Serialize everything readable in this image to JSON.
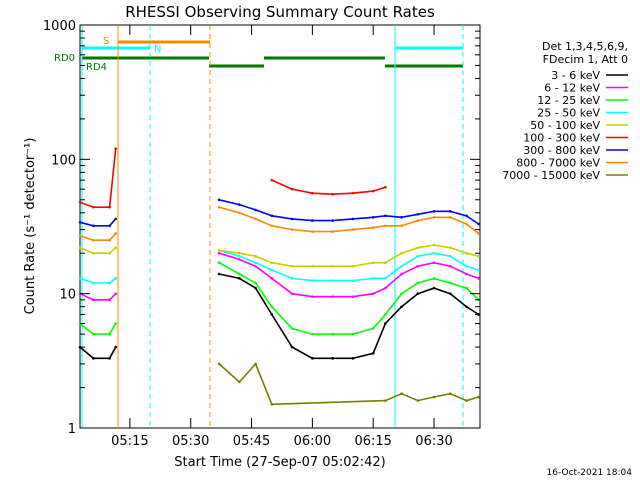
{
  "chart_data": {
    "type": "line",
    "title": "RHESSI Observing Summary Count Rates",
    "xlabel": "Start Time (27-Sep-07 05:02:42)",
    "ylabel": "Count Rate (s⁻¹ detector⁻¹)",
    "yscale": "log",
    "xlim": [
      "05:02:42",
      "06:41:20"
    ],
    "ylim": [
      1,
      1000
    ],
    "x_ticks": [
      "05:15",
      "05:30",
      "05:45",
      "06:00",
      "06:15",
      "06:30"
    ],
    "y_ticks": [
      "1",
      "10",
      "100",
      "1000"
    ],
    "legend_header": [
      "Det 1,3,4,5,6,9,",
      "FDecim 1, Att 0"
    ],
    "timestamp": "16-Oct-2021 18:04",
    "state_labels": {
      "S": "S",
      "N": "N",
      "RD0": "RD0",
      "RD4": "RD4"
    },
    "series": [
      {
        "name": "3 - 6 keV",
        "color": "#000000",
        "x": [
          "05:02:42",
          "05:06:00",
          "05:10:00",
          "05:11:30",
          "05:12:30",
          "05:37:00",
          "05:42:00",
          "05:46:00",
          "05:50:00",
          "05:55:00",
          "06:00:00",
          "06:05:00",
          "06:10:00",
          "06:15:00",
          "06:18:00",
          "06:22:00",
          "06:26:00",
          "06:30:00",
          "06:34:00",
          "06:38:00",
          "06:41:00"
        ],
        "values": [
          4.0,
          3.3,
          3.3,
          4,
          null,
          14,
          13,
          11,
          7,
          4,
          3.3,
          3.3,
          3.3,
          3.6,
          6,
          8,
          10,
          11,
          10,
          8,
          7
        ]
      },
      {
        "name": "6 - 12 keV",
        "color": "#ff00ff",
        "x": [
          "05:02:42",
          "05:06:00",
          "05:10:00",
          "05:11:30",
          "05:12:30",
          "05:37:00",
          "05:42:00",
          "05:46:00",
          "05:50:00",
          "05:55:00",
          "06:00:00",
          "06:05:00",
          "06:10:00",
          "06:15:00",
          "06:18:00",
          "06:22:00",
          "06:26:00",
          "06:30:00",
          "06:34:00",
          "06:38:00",
          "06:41:00"
        ],
        "values": [
          10,
          9,
          9,
          10,
          null,
          20,
          18,
          16,
          13,
          10,
          9.5,
          9.5,
          9.5,
          10,
          11,
          14,
          16,
          17,
          16,
          14,
          13
        ]
      },
      {
        "name": "12 - 25 keV",
        "color": "#00ff00",
        "x": [
          "05:02:42",
          "05:06:00",
          "05:10:00",
          "05:11:30",
          "05:12:30",
          "05:37:00",
          "05:42:00",
          "05:46:00",
          "05:50:00",
          "05:55:00",
          "06:00:00",
          "06:05:00",
          "06:10:00",
          "06:15:00",
          "06:18:00",
          "06:22:00",
          "06:26:00",
          "06:30:00",
          "06:34:00",
          "06:38:00",
          "06:41:00"
        ],
        "values": [
          6,
          5,
          5,
          6,
          null,
          17,
          14,
          12,
          8,
          5.5,
          5,
          5,
          5,
          5.5,
          7,
          10,
          12,
          13,
          12,
          11,
          9
        ]
      },
      {
        "name": "25 - 50 keV",
        "color": "#00ffff",
        "x": [
          "05:02:42",
          "05:06:00",
          "05:10:00",
          "05:11:30",
          "05:12:30",
          "05:37:00",
          "05:42:00",
          "05:46:00",
          "05:50:00",
          "05:55:00",
          "06:00:00",
          "06:05:00",
          "06:10:00",
          "06:15:00",
          "06:18:00",
          "06:22:00",
          "06:26:00",
          "06:30:00",
          "06:34:00",
          "06:38:00",
          "06:41:00"
        ],
        "values": [
          13,
          12,
          12,
          13,
          null,
          21,
          19,
          17,
          15,
          13,
          12.5,
          12.5,
          12.5,
          13,
          13,
          16,
          19,
          20,
          19,
          16,
          15
        ]
      },
      {
        "name": "50 - 100 keV",
        "color": "#cccc00",
        "x": [
          "05:02:42",
          "05:06:00",
          "05:10:00",
          "05:11:30",
          "05:12:30",
          "05:37:00",
          "05:42:00",
          "05:46:00",
          "05:50:00",
          "05:55:00",
          "06:00:00",
          "06:05:00",
          "06:10:00",
          "06:15:00",
          "06:18:00",
          "06:22:00",
          "06:26:00",
          "06:30:00",
          "06:34:00",
          "06:38:00",
          "06:41:00"
        ],
        "values": [
          22,
          20,
          20,
          22,
          null,
          21,
          20,
          19,
          17,
          16,
          16,
          16,
          16,
          17,
          17,
          20,
          22,
          23,
          22,
          20,
          19
        ]
      },
      {
        "name": "100 - 300 keV",
        "color": "#ff0000",
        "x": [
          "05:02:42",
          "05:06:00",
          "05:10:00",
          "05:11:30",
          "05:12:30",
          "05:37:00",
          "05:42:00",
          "05:46:00",
          "05:50:00",
          "05:55:00",
          "06:00:00",
          "06:05:00",
          "06:10:00",
          "06:15:00",
          "06:18:00",
          "06:22:00",
          "06:26:00",
          "06:30:00",
          "06:34:00",
          "06:38:00",
          "06:41:00"
        ],
        "values": [
          48,
          44,
          44,
          120,
          null,
          null,
          null,
          null,
          70,
          60,
          56,
          55,
          56,
          58,
          62,
          null,
          null,
          null,
          null,
          null,
          null
        ]
      },
      {
        "name": "300 - 800 keV",
        "color": "#0000ff",
        "x": [
          "05:02:42",
          "05:06:00",
          "05:10:00",
          "05:11:30",
          "05:12:30",
          "05:37:00",
          "05:42:00",
          "05:46:00",
          "05:50:00",
          "05:55:00",
          "06:00:00",
          "06:05:00",
          "06:10:00",
          "06:15:00",
          "06:18:00",
          "06:22:00",
          "06:26:00",
          "06:30:00",
          "06:34:00",
          "06:38:00",
          "06:41:00"
        ],
        "values": [
          34,
          32,
          32,
          36,
          null,
          50,
          46,
          42,
          38,
          36,
          35,
          35,
          36,
          37,
          38,
          37,
          39,
          41,
          41,
          38,
          33
        ]
      },
      {
        "name": "800 - 7000 keV",
        "color": "#ff8800",
        "x": [
          "05:02:42",
          "05:06:00",
          "05:10:00",
          "05:11:30",
          "05:12:30",
          "05:37:00",
          "05:42:00",
          "05:46:00",
          "05:50:00",
          "05:55:00",
          "06:00:00",
          "06:05:00",
          "06:10:00",
          "06:15:00",
          "06:18:00",
          "06:22:00",
          "06:26:00",
          "06:30:00",
          "06:34:00",
          "06:38:00",
          "06:41:00"
        ],
        "values": [
          27,
          25,
          25,
          28,
          null,
          44,
          40,
          36,
          32,
          30,
          29,
          29,
          30,
          31,
          32,
          32,
          35,
          37,
          37,
          33,
          28
        ]
      },
      {
        "name": "7000 - 15000 keV",
        "color": "#7a7a00",
        "x": [
          "05:37:00",
          "05:42:00",
          "05:46:00",
          "05:50:00",
          "06:18:00",
          "06:22:00",
          "06:26:00",
          "06:30:00",
          "06:34:00",
          "06:38:00",
          "06:41:00"
        ],
        "values": [
          3,
          2.2,
          3,
          1.5,
          1.6,
          1.8,
          1.6,
          1.7,
          1.8,
          1.6,
          1.7
        ]
      }
    ]
  }
}
